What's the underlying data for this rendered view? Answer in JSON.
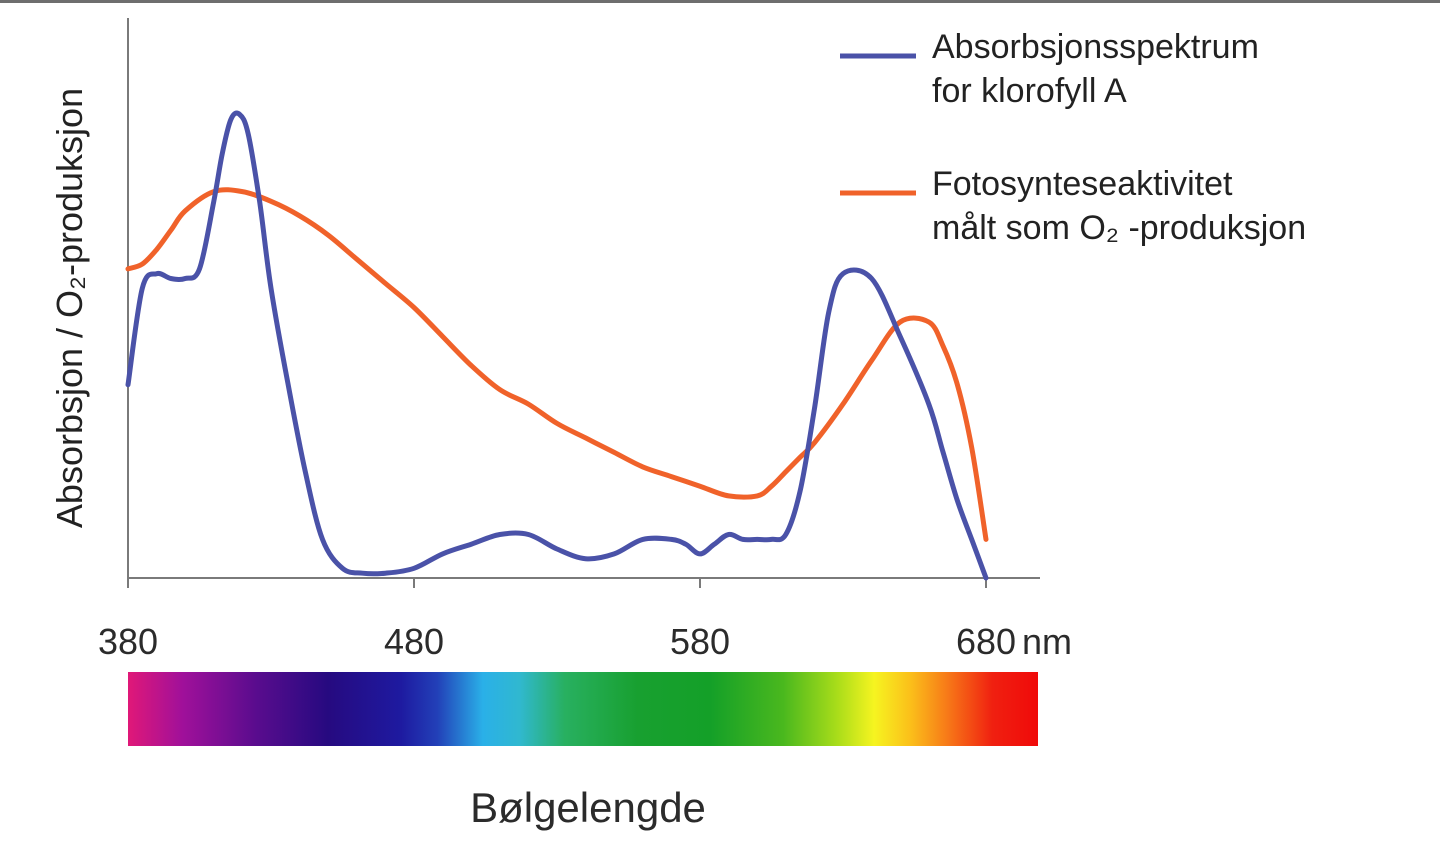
{
  "chart_data": {
    "type": "line",
    "ylabel": "Absorbsjon / O₂-produksjon",
    "xlabel": "Bølgelengde",
    "x_unit": "nm",
    "xlim": [
      380,
      680
    ],
    "ylim": [
      0,
      100
    ],
    "x_ticks": [
      "380",
      "480",
      "580",
      "680"
    ],
    "y_ticks_shown": false,
    "legend_position": "top-right",
    "series": [
      {
        "name": "Absorbsjonsspektrum for klorofyll A",
        "legend_lines": [
          "Absorbsjonsspektrum",
          "for klorofyll A"
        ],
        "color": "#4a52a8",
        "x": [
          380,
          385,
          390,
          395,
          400,
          405,
          410,
          413,
          416,
          419,
          422,
          426,
          430,
          436,
          442,
          448,
          455,
          462,
          470,
          480,
          490,
          500,
          510,
          520,
          530,
          540,
          550,
          560,
          570,
          575,
          580,
          585,
          590,
          595,
          600,
          605,
          610,
          615,
          620,
          625,
          630,
          640,
          650,
          660,
          665,
          670,
          675,
          680
        ],
        "y": [
          40,
          60,
          63,
          62,
          62,
          64,
          78,
          88,
          95,
          96,
          92,
          78,
          60,
          40,
          22,
          8,
          2,
          1,
          1,
          2,
          5,
          7,
          9,
          9,
          6,
          4,
          5,
          8,
          8,
          7,
          5,
          7,
          9,
          8,
          8,
          8,
          9,
          18,
          35,
          55,
          63,
          62,
          50,
          36,
          26,
          16,
          8,
          0
        ]
      },
      {
        "name": "Fotosynteseaktivitet målt som O₂-produksjon",
        "legend_lines": [
          "Fotosynteseaktivitet",
          "målt som O₂ -produksjon"
        ],
        "color": "#f0622a",
        "x": [
          380,
          385,
          390,
          395,
          400,
          410,
          420,
          430,
          440,
          450,
          460,
          470,
          480,
          490,
          500,
          510,
          520,
          530,
          540,
          550,
          560,
          570,
          580,
          590,
          600,
          605,
          610,
          615,
          620,
          630,
          640,
          650,
          660,
          665,
          670,
          675,
          680
        ],
        "y": [
          64,
          65,
          68,
          72,
          76,
          80,
          80,
          78,
          75,
          71,
          66,
          61,
          56,
          50,
          44,
          39,
          36,
          32,
          29,
          26,
          23,
          21,
          19,
          17,
          17,
          19,
          22,
          25,
          28,
          36,
          45,
          53,
          53,
          48,
          40,
          27,
          8
        ]
      }
    ],
    "color_bar": {
      "stops": [
        {
          "pos": 0.0,
          "color": "#e01878"
        },
        {
          "pos": 0.06,
          "color": "#a0109a"
        },
        {
          "pos": 0.14,
          "color": "#5a0c8e"
        },
        {
          "pos": 0.22,
          "color": "#260a80"
        },
        {
          "pos": 0.3,
          "color": "#1e1aa0"
        },
        {
          "pos": 0.34,
          "color": "#2240b8"
        },
        {
          "pos": 0.39,
          "color": "#2ab0e8"
        },
        {
          "pos": 0.43,
          "color": "#30b8d0"
        },
        {
          "pos": 0.48,
          "color": "#28b060"
        },
        {
          "pos": 0.56,
          "color": "#18a030"
        },
        {
          "pos": 0.64,
          "color": "#14a028"
        },
        {
          "pos": 0.72,
          "color": "#4ab81e"
        },
        {
          "pos": 0.78,
          "color": "#aadd1a"
        },
        {
          "pos": 0.82,
          "color": "#f6f420"
        },
        {
          "pos": 0.86,
          "color": "#fbbf1a"
        },
        {
          "pos": 0.9,
          "color": "#f77a18"
        },
        {
          "pos": 0.95,
          "color": "#f02010"
        },
        {
          "pos": 1.0,
          "color": "#f00a0a"
        }
      ]
    }
  }
}
